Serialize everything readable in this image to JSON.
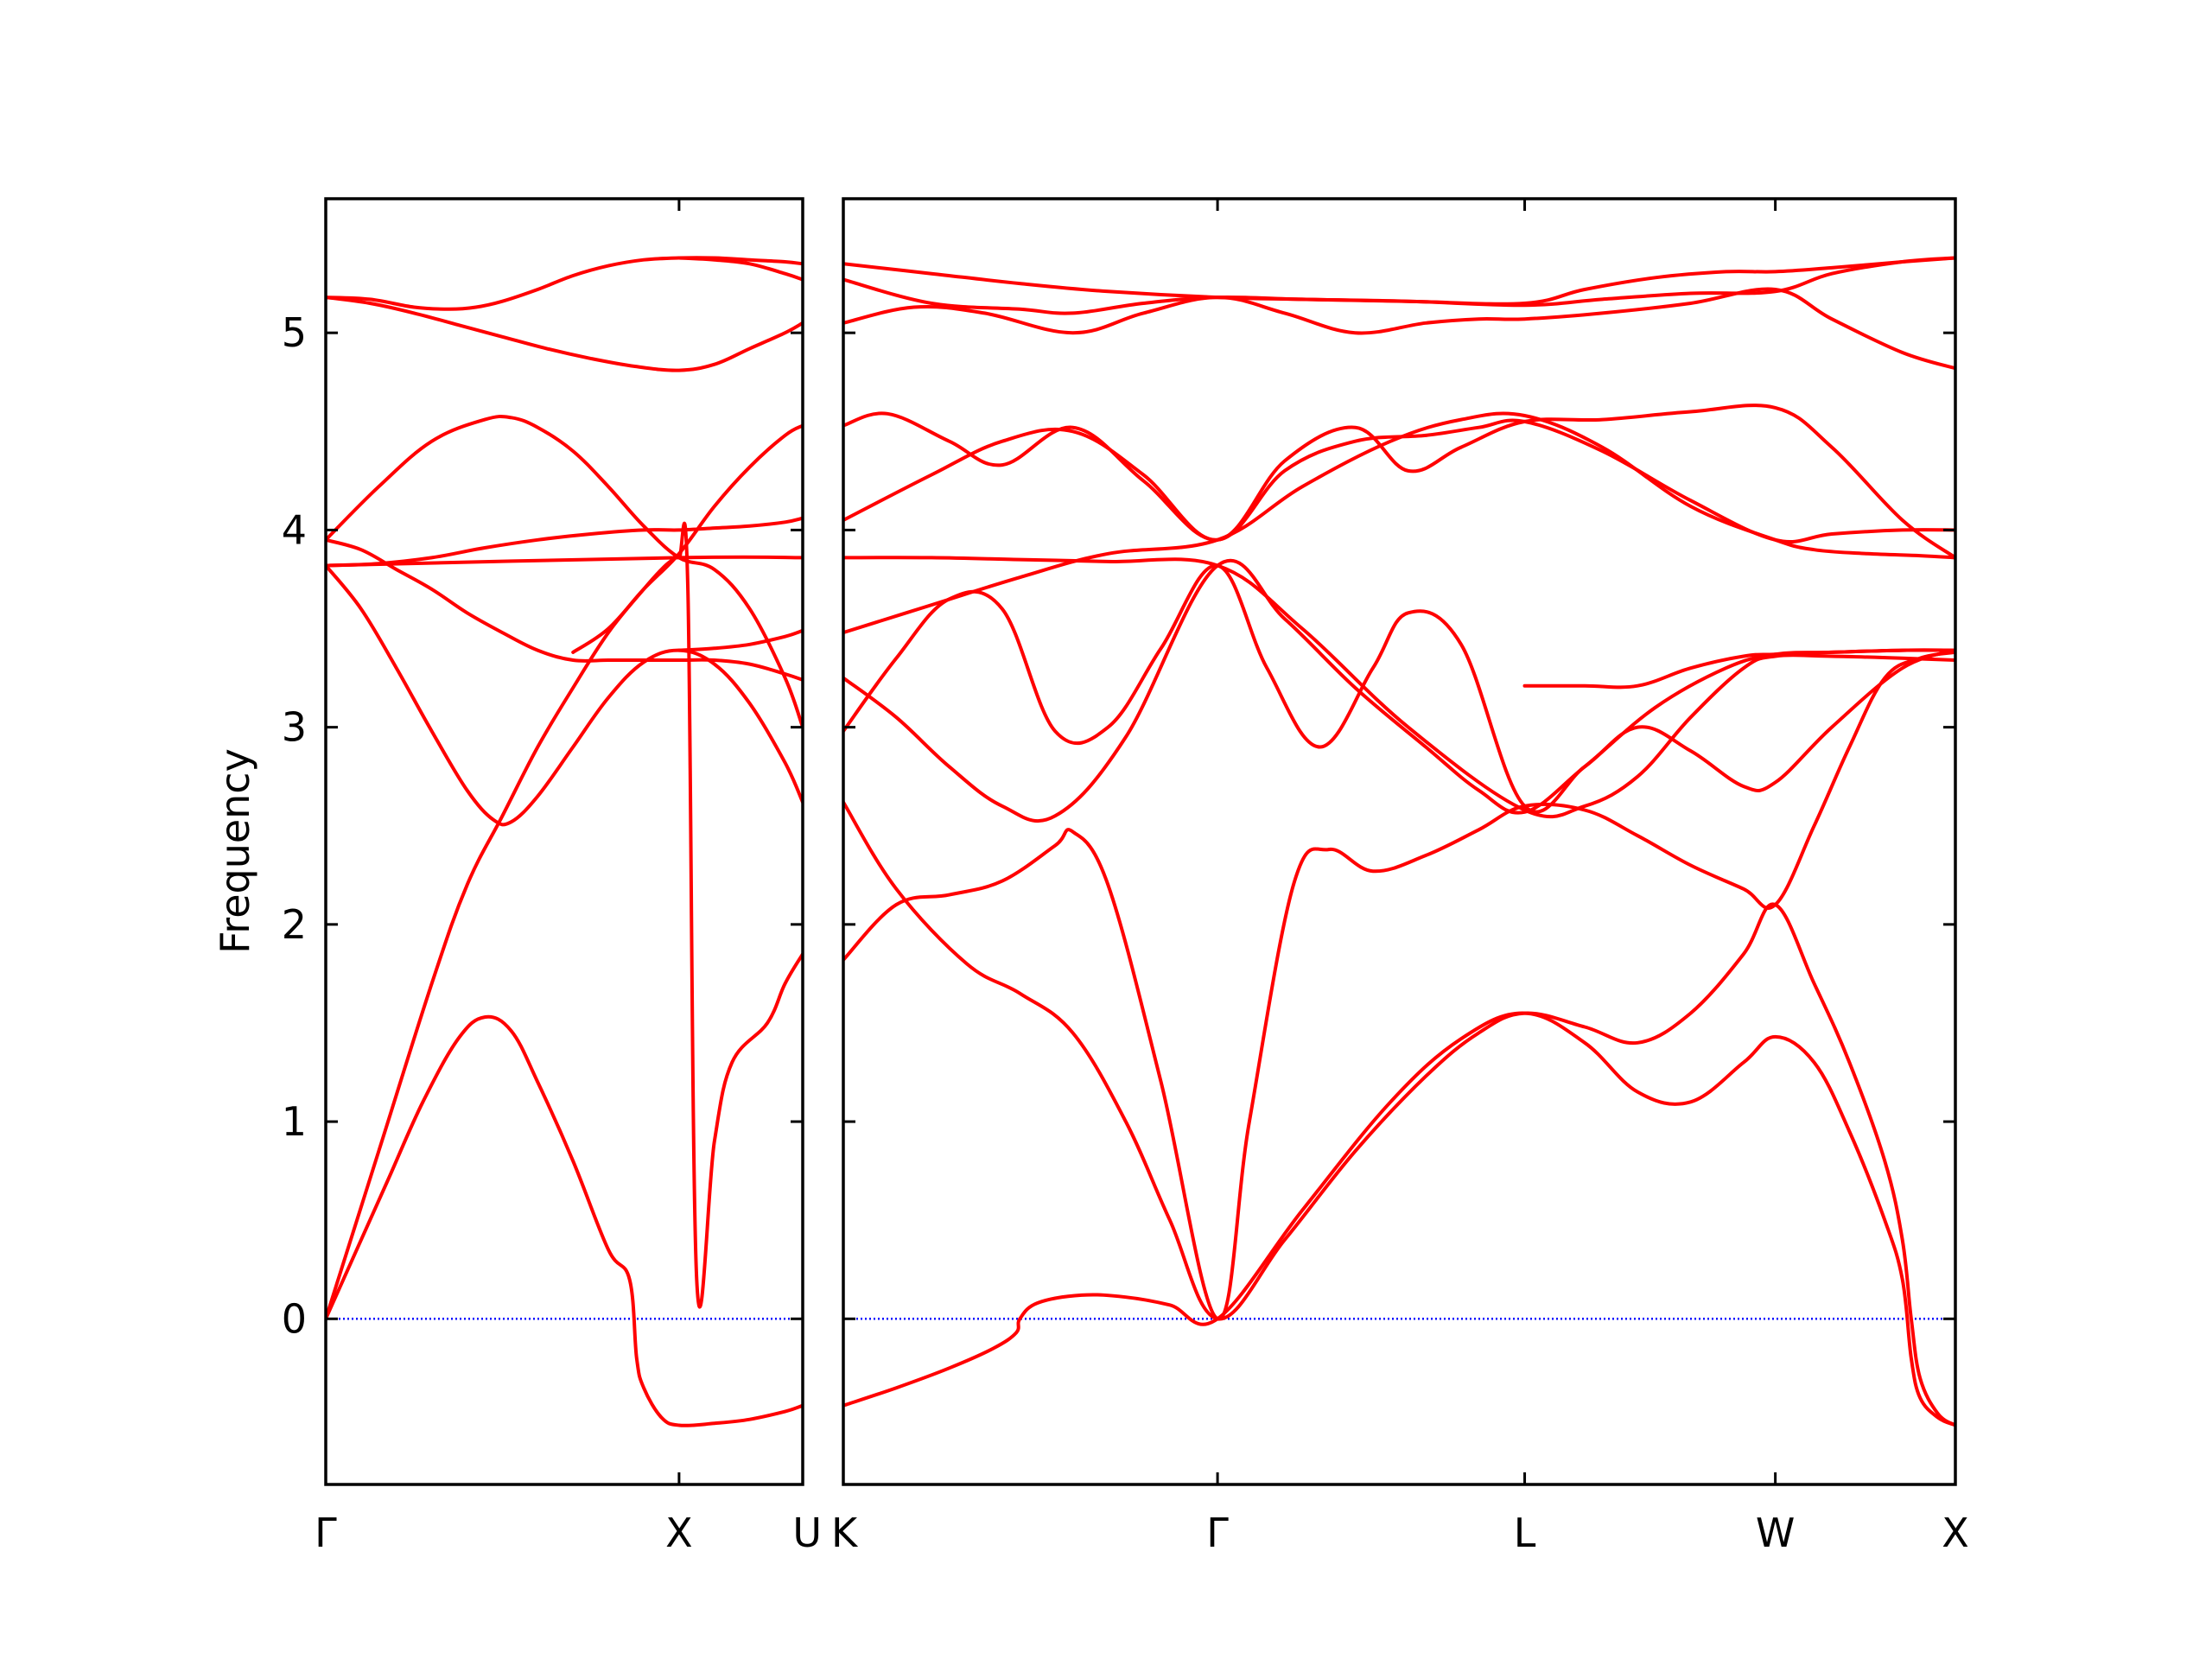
{
  "chart_data": {
    "type": "line",
    "ylabel": "Frequency",
    "ylim": [
      -0.84,
      5.68
    ],
    "yticks": [
      0,
      1,
      2,
      3,
      4,
      5
    ],
    "colors": {
      "bands": "#ff0000",
      "zero_line": "#0000ff",
      "frame": "#000000"
    },
    "zero_line": {
      "y": 0,
      "style": "dotted"
    },
    "panels": [
      {
        "xlim": [
          0,
          2.7
        ],
        "xticks": [
          {
            "x": 0,
            "label": "Γ"
          },
          {
            "x": 2.0,
            "label": "X"
          },
          {
            "x": 2.7,
            "label": "U"
          }
        ],
        "series": [
          {
            "x": [
              0,
              0.15,
              0.35,
              0.55,
              0.75,
              0.9,
              1.05,
              1.2,
              1.4,
              1.6,
              1.72,
              1.76,
              1.8,
              1.9,
              2.0,
              2.2,
              2.4,
              2.6,
              2.7
            ],
            "y": [
              0,
              0.3,
              0.7,
              1.1,
              1.42,
              1.53,
              1.46,
              1.2,
              0.8,
              0.35,
              0.2,
              -0.2,
              -0.35,
              -0.5,
              -0.54,
              -0.53,
              -0.51,
              -0.47,
              -0.44
            ]
          },
          {
            "x": [
              0,
              0.3,
              0.6,
              0.8,
              1.0,
              1.2,
              1.4,
              1.6,
              1.8,
              1.9,
              1.95,
              2.0,
              2.05,
              2.1,
              2.2,
              2.3,
              2.5,
              2.6,
              2.7
            ],
            "y": [
              0,
              0.85,
              1.7,
              2.2,
              2.55,
              2.9,
              3.2,
              3.48,
              3.7,
              3.8,
              3.84,
              3.86,
              3.7,
              0.2,
              0.9,
              1.3,
              1.5,
              1.7,
              1.85
            ]
          },
          {
            "x": [
              0,
              0.2,
              0.4,
              0.6,
              0.8,
              0.95,
              1.05,
              1.2,
              1.4,
              1.6,
              1.8,
              2.0,
              2.2,
              2.4,
              2.6,
              2.7
            ],
            "y": [
              3.82,
              3.6,
              3.3,
              2.98,
              2.68,
              2.53,
              2.52,
              2.65,
              2.9,
              3.15,
              3.33,
              3.39,
              3.32,
              3.12,
              2.82,
              2.62
            ]
          },
          {
            "x": [
              0,
              0.2,
              0.4,
              0.6,
              0.8,
              1.0,
              1.2,
              1.4,
              1.6,
              1.8,
              2.0,
              2.2,
              2.4,
              2.6,
              2.7
            ],
            "y": [
              3.95,
              3.9,
              3.8,
              3.7,
              3.58,
              3.48,
              3.39,
              3.34,
              3.34,
              3.34,
              3.34,
              3.34,
              3.32,
              3.27,
              3.24
            ]
          },
          {
            "x": [
              0,
              0.3,
              0.6,
              0.9,
              1.2,
              1.5,
              1.8,
              2.0,
              2.2,
              2.4,
              2.6,
              2.7
            ],
            "y": [
              3.82,
              3.83,
              3.86,
              3.91,
              3.95,
              3.98,
              4.0,
              4.0,
              4.01,
              4.02,
              4.04,
              4.06
            ]
          },
          {
            "x": [
              0,
              0.3,
              0.6,
              0.9,
              1.05,
              1.2,
              1.4,
              1.6,
              1.8,
              2.0,
              2.2,
              2.4,
              2.6,
              2.7
            ],
            "y": [
              3.95,
              4.22,
              4.45,
              4.56,
              4.57,
              4.52,
              4.4,
              4.22,
              4.02,
              3.86,
              3.8,
              3.6,
              3.25,
              3.0
            ]
          },
          {
            "x": [
              0,
              2.0,
              2.7
            ],
            "y": [
              3.82,
              3.86,
              3.86
            ]
          },
          {
            "x": [
              1.4,
              1.6,
              1.8,
              2.0,
              2.2,
              2.4,
              2.6,
              2.7
            ],
            "y": [
              3.38,
              3.5,
              3.7,
              3.88,
              4.12,
              4.32,
              4.48,
              4.53
            ]
          },
          {
            "x": [
              2.0,
              2.2,
              2.4,
              2.6,
              2.7
            ],
            "y": [
              3.39,
              3.4,
              3.42,
              3.46,
              3.49
            ]
          },
          {
            "x": [
              0,
              0.25,
              0.5,
              0.75,
              1.0,
              1.25,
              1.5,
              1.75,
              2.0,
              2.2,
              2.4,
              2.6,
              2.7
            ],
            "y": [
              5.18,
              5.15,
              5.1,
              5.04,
              4.98,
              4.92,
              4.87,
              4.83,
              4.81,
              4.84,
              4.92,
              5.0,
              5.05
            ]
          },
          {
            "x": [
              0,
              0.25,
              0.5,
              0.7,
              0.85,
              1.0,
              1.2,
              1.4,
              1.6,
              1.8,
              2.0,
              2.2,
              2.4,
              2.6,
              2.7
            ],
            "y": [
              5.18,
              5.17,
              5.13,
              5.12,
              5.13,
              5.16,
              5.22,
              5.29,
              5.34,
              5.37,
              5.38,
              5.38,
              5.37,
              5.36,
              5.35
            ]
          },
          {
            "x": [
              2.0,
              2.2,
              2.4,
              2.6,
              2.7
            ],
            "y": [
              5.38,
              5.37,
              5.35,
              5.3,
              5.27
            ]
          }
        ]
      },
      {
        "xlim": [
          0,
          6.3
        ],
        "xticks": [
          {
            "x": 0,
            "label": "K"
          },
          {
            "x": 2.12,
            "label": "Γ"
          },
          {
            "x": 3.86,
            "label": "L"
          },
          {
            "x": 5.28,
            "label": "W"
          },
          {
            "x": 6.3,
            "label": "X"
          }
        ],
        "series": [
          {
            "x": [
              0,
              0.3,
              0.6,
              0.85,
              0.98,
              1.0,
              1.1,
              1.35,
              1.6,
              1.85,
              2.12,
              2.6,
              3.1,
              3.5,
              3.86,
              4.2,
              4.5,
              4.8,
              5.1,
              5.28,
              5.5,
              5.7,
              5.9,
              6.0,
              6.05,
              6.1,
              6.2,
              6.3
            ],
            "y": [
              -0.44,
              -0.35,
              -0.25,
              -0.15,
              -0.07,
              0.0,
              0.08,
              0.12,
              0.11,
              0.07,
              0.0,
              0.55,
              1.1,
              1.42,
              1.55,
              1.4,
              1.15,
              1.1,
              1.3,
              1.43,
              1.3,
              0.95,
              0.5,
              0.2,
              -0.2,
              -0.4,
              -0.5,
              -0.54
            ]
          },
          {
            "x": [
              0,
              0.3,
              0.7,
              1.0,
              1.3,
              1.6,
              1.85,
              2.12,
              2.5,
              2.9,
              3.3,
              3.6,
              3.86,
              4.2,
              4.5,
              4.8,
              5.1,
              5.28,
              5.5,
              5.7,
              5.9,
              6.0,
              6.05,
              6.1,
              6.2,
              6.3
            ],
            "y": [
              2.62,
              2.18,
              1.8,
              1.65,
              1.45,
              1.0,
              0.5,
              0.0,
              0.4,
              0.85,
              1.23,
              1.45,
              1.55,
              1.48,
              1.4,
              1.55,
              1.85,
              2.1,
              1.7,
              1.3,
              0.8,
              0.4,
              0.0,
              -0.3,
              -0.48,
              -0.54
            ]
          },
          {
            "x": [
              0,
              0.3,
              0.6,
              0.9,
              1.2,
              1.3,
              1.5,
              1.8,
              2.12,
              2.3,
              2.55,
              2.75,
              3.0,
              3.3,
              3.6,
              3.86,
              4.2,
              4.5,
              4.8,
              5.1,
              5.28,
              5.5,
              5.7,
              5.9,
              6.1,
              6.3
            ],
            "y": [
              1.82,
              2.1,
              2.15,
              2.22,
              2.4,
              2.47,
              2.2,
              1.2,
              0.0,
              1.0,
              2.2,
              2.38,
              2.27,
              2.35,
              2.48,
              2.6,
              2.58,
              2.45,
              2.3,
              2.18,
              2.1,
              2.5,
              2.9,
              3.25,
              3.35,
              3.38
            ]
          },
          {
            "x": [
              0,
              0.3,
              0.6,
              0.9,
              1.2,
              1.5,
              1.8,
              2.12,
              2.4,
              2.7,
              3.0,
              3.2,
              3.5,
              3.86,
              4.2,
              4.5,
              4.8,
              5.1,
              5.28,
              5.6,
              6.0,
              6.3
            ],
            "y": [
              2.98,
              3.35,
              3.65,
              3.6,
              2.98,
              3.0,
              3.4,
              3.82,
              3.3,
              2.9,
              3.3,
              3.58,
              3.42,
              2.6,
              2.8,
              3.0,
              2.88,
              2.7,
              2.72,
              3.0,
              3.3,
              3.39
            ]
          },
          {
            "x": [
              0,
              0.3,
              0.6,
              0.9,
              1.2,
              1.6,
              2.12,
              2.5,
              2.9,
              3.3,
              3.6,
              3.86,
              4.2,
              4.6,
              5.0,
              5.28,
              5.6,
              6.0,
              6.3
            ],
            "y": [
              3.25,
              3.05,
              2.8,
              2.6,
              2.55,
              2.95,
              3.82,
              3.55,
              3.2,
              2.9,
              2.68,
              2.57,
              2.8,
              3.1,
              3.3,
              3.37,
              3.38,
              3.39,
              3.39
            ]
          },
          {
            "x": [
              0,
              0.5,
              1.0,
              1.5,
              2.12,
              2.6,
              3.2,
              3.86,
              4.2,
              4.5,
              4.8,
              5.1,
              5.28,
              5.6,
              6.0,
              6.3
            ],
            "y": [
              3.86,
              3.86,
              3.85,
              3.84,
              3.82,
              3.5,
              3.0,
              2.58,
              2.6,
              2.75,
              3.05,
              3.3,
              3.36,
              3.36,
              3.35,
              3.34
            ]
          },
          {
            "x": [
              3.86,
              4.2,
              4.5,
              4.8,
              5.1,
              5.28,
              5.6,
              6.0,
              6.3
            ],
            "y": [
              3.21,
              3.21,
              3.21,
              3.3,
              3.36,
              3.37,
              3.38,
              3.39,
              3.39
            ]
          },
          {
            "x": [
              0,
              0.5,
              1.0,
              1.5,
              2.12,
              2.6,
              3.1,
              3.5,
              3.86,
              4.3,
              4.8,
              5.28,
              5.5,
              5.8,
              6.1,
              6.3
            ],
            "y": [
              3.48,
              3.62,
              3.76,
              3.88,
              3.95,
              4.22,
              4.45,
              4.56,
              4.58,
              4.42,
              4.12,
              3.95,
              3.9,
              3.88,
              3.87,
              3.86
            ]
          },
          {
            "x": [
              0,
              0.5,
              0.9,
              1.3,
              1.7,
              2.12,
              2.5,
              2.9,
              3.2,
              3.5,
              3.86,
              4.3,
              4.8,
              5.28,
              5.6,
              6.0,
              6.3
            ],
            "y": [
              4.05,
              4.28,
              4.45,
              4.5,
              4.28,
              3.95,
              4.35,
              4.52,
              4.3,
              4.42,
              4.55,
              4.56,
              4.6,
              4.62,
              4.42,
              4.05,
              3.86
            ]
          },
          {
            "x": [
              0,
              0.25,
              0.6,
              0.9,
              1.3,
              1.7,
              2.12,
              2.5,
              2.9,
              3.3,
              3.6,
              3.86,
              4.3,
              4.8,
              5.28,
              5.6,
              6.0,
              6.3
            ],
            "y": [
              4.53,
              4.59,
              4.45,
              4.33,
              4.52,
              4.25,
              3.95,
              4.3,
              4.45,
              4.48,
              4.52,
              4.55,
              4.4,
              4.15,
              3.95,
              3.98,
              4.0,
              4.0
            ]
          },
          {
            "x": [
              0,
              0.4,
              0.8,
              1.3,
              1.7,
              2.12,
              2.5,
              2.9,
              3.3,
              3.6,
              3.86,
              4.3,
              4.8,
              5.28,
              5.6,
              6.0,
              6.3
            ],
            "y": [
              5.05,
              5.13,
              5.1,
              5.0,
              5.1,
              5.18,
              5.1,
              5.0,
              5.05,
              5.07,
              5.07,
              5.1,
              5.15,
              5.22,
              5.07,
              4.9,
              4.82
            ]
          },
          {
            "x": [
              0,
              0.5,
              1.0,
              1.3,
              1.7,
              2.12,
              2.6,
              3.2,
              3.86,
              4.3,
              4.8,
              5.28,
              5.6,
              6.0,
              6.3
            ],
            "y": [
              5.27,
              5.15,
              5.12,
              5.1,
              5.15,
              5.18,
              5.17,
              5.16,
              5.14,
              5.17,
              5.2,
              5.21,
              5.3,
              5.36,
              5.38
            ]
          },
          {
            "x": [
              0,
              0.5,
              1.0,
              1.5,
              2.12,
              2.6,
              3.2,
              3.86,
              4.2,
              4.6,
              5.0,
              5.28,
              5.6,
              6.0,
              6.3
            ],
            "y": [
              5.35,
              5.3,
              5.25,
              5.21,
              5.18,
              5.17,
              5.16,
              5.15,
              5.22,
              5.28,
              5.31,
              5.31,
              5.33,
              5.36,
              5.38
            ]
          }
        ]
      }
    ]
  }
}
